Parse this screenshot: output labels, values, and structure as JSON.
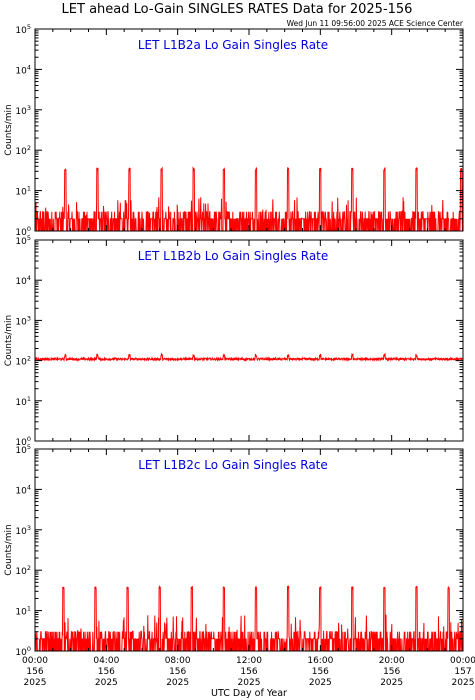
{
  "title": "LET ahead Lo-Gain SINGLES RATES Data for 2025-156",
  "timestamp": "Wed Jun 11 09:56:00 2025 ACE Science Center",
  "xlabel": "UTC Day of Year",
  "colors": {
    "series": "#ff0000",
    "panel_title": "#0000dd",
    "axis": "#000000"
  },
  "chart_data": [
    {
      "type": "line",
      "panel_title": "LET L1B2a Lo Gain Singles Rate",
      "ylabel": "Counts/min",
      "yscale": "log",
      "ylim": [
        1,
        100000
      ],
      "yticks": [
        "10^0",
        "10^1",
        "10^2",
        "10^3",
        "10^4",
        "10^5"
      ],
      "xlim": [
        0,
        24
      ],
      "baseline_range": [
        1,
        6
      ],
      "spike_value": 35,
      "spike_hours": [
        1.7,
        3.5,
        5.3,
        7.1,
        8.9,
        10.6,
        12.4,
        14.2,
        16.0,
        17.8,
        19.6,
        21.4,
        23.9
      ]
    },
    {
      "type": "line",
      "panel_title": "LET L1B2b Lo Gain Singles Rate",
      "ylabel": "Counts/min",
      "yscale": "log",
      "ylim": [
        1,
        100000
      ],
      "yticks": [
        "10^0",
        "10^1",
        "10^2",
        "10^3",
        "10^4",
        "10^5"
      ],
      "xlim": [
        0,
        24
      ],
      "baseline_value": 110,
      "spike_value": 140,
      "spike_hours": [
        1.7,
        3.5,
        5.3,
        7.1,
        8.9,
        10.6,
        12.4,
        14.2,
        16.0,
        17.8,
        19.6,
        21.4
      ]
    },
    {
      "type": "line",
      "panel_title": "LET L1B2c Lo Gain Singles Rate",
      "ylabel": "Counts/min",
      "yscale": "log",
      "ylim": [
        1,
        100000
      ],
      "yticks": [
        "10^0",
        "10^1",
        "10^2",
        "10^3",
        "10^4",
        "10^5"
      ],
      "xlim": [
        0,
        24
      ],
      "xticks": [
        {
          "hour": 0,
          "time": "00:00",
          "doy": "156",
          "year": "2025"
        },
        {
          "hour": 4,
          "time": "04:00",
          "doy": "156",
          "year": "2025"
        },
        {
          "hour": 8,
          "time": "08:00",
          "doy": "156",
          "year": "2025"
        },
        {
          "hour": 12,
          "time": "12:00",
          "doy": "156",
          "year": "2025"
        },
        {
          "hour": 16,
          "time": "16:00",
          "doy": "156",
          "year": "2025"
        },
        {
          "hour": 20,
          "time": "20:00",
          "doy": "156",
          "year": "2025"
        },
        {
          "hour": 24,
          "time": "00:00",
          "doy": "157",
          "year": "2025"
        }
      ],
      "baseline_range": [
        1,
        7
      ],
      "spike_value": 38,
      "spike_hours": [
        1.6,
        3.4,
        5.2,
        7.0,
        8.8,
        10.6,
        12.4,
        14.2,
        16.0,
        17.8,
        19.6,
        21.4,
        23.2
      ]
    }
  ]
}
